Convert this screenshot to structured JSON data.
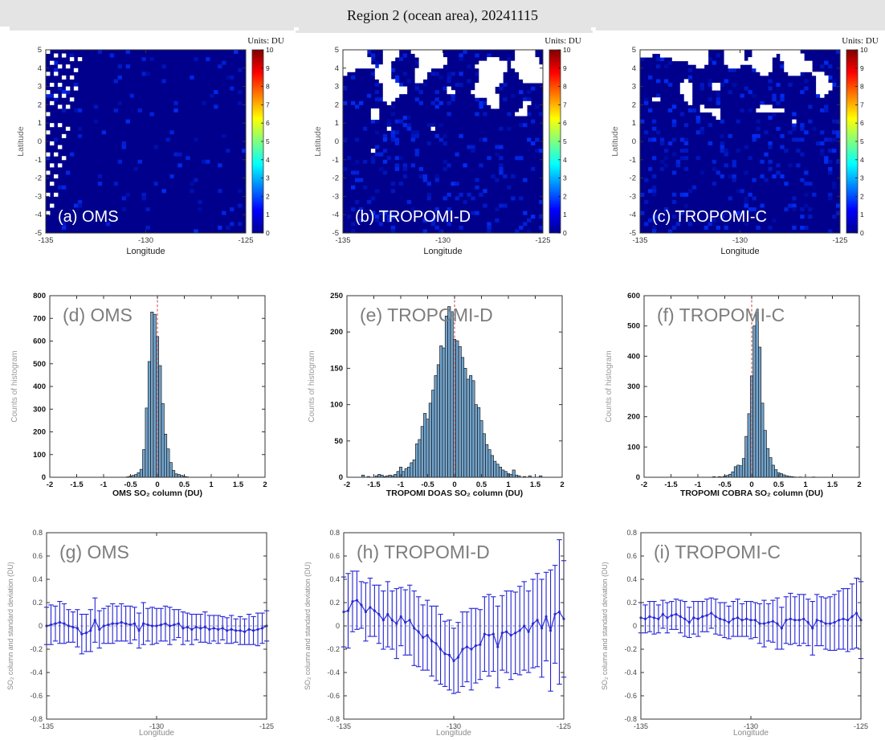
{
  "header": {
    "title": "Region 2 (ocean area), 20241115"
  },
  "style": {
    "header_bg": "#e4e4e4",
    "map_bg": "#00008c",
    "missing_color": "#ffffff",
    "bar_fill": "#73a5ce",
    "bar_edge": "#1a1a1a",
    "refline_color": "#d85050",
    "errorbar_color": "#2424d6",
    "zero_line_color": "#777777",
    "panel_label_row1": "#ffffff",
    "panel_label_gray": "#7d7d7d",
    "axis_color": "#333333",
    "jet_stops": [
      [
        "0%",
        "#7f0000"
      ],
      [
        "12.5%",
        "#ff0000"
      ],
      [
        "37.5%",
        "#ffff00"
      ],
      [
        "50%",
        "#7fff7f"
      ],
      [
        "62.5%",
        "#00ffff"
      ],
      [
        "87.5%",
        "#0000ff"
      ],
      [
        "100%",
        "#00008f"
      ]
    ]
  },
  "chart_data": [
    {
      "panel": "a",
      "type": "heatmap",
      "label": "(a) OMS",
      "xlabel": "Longitude",
      "ylabel": "Latitude",
      "xlim": [
        -135,
        -125
      ],
      "ylim": [
        -5,
        5
      ],
      "xticks": [
        -135,
        -130,
        -125
      ],
      "yticks": [
        5,
        4,
        3,
        2,
        1,
        0,
        -1,
        -2,
        -3,
        -4,
        -5
      ],
      "grid": {
        "cols": 50,
        "rows": 50
      },
      "colorbar": {
        "title": "Units: DU",
        "min": 0,
        "max": 10,
        "ticks": [
          0,
          1,
          2,
          3,
          4,
          5,
          6,
          7,
          8,
          9,
          10
        ]
      },
      "missing_pattern": "diagonal-scatter-left",
      "noise_seed": 5,
      "speckle_density": 0.05,
      "extra_missing": []
    },
    {
      "panel": "b",
      "type": "heatmap",
      "label": "(b) TROPOMI-D",
      "xlabel": "Longitude",
      "ylabel": "Latitude",
      "xlim": [
        -135,
        -125
      ],
      "ylim": [
        -5,
        5
      ],
      "xticks": [
        -135,
        -130,
        -125
      ],
      "yticks": [
        5,
        4,
        3,
        2,
        1,
        0,
        -1,
        -2,
        -3,
        -4,
        -5
      ],
      "grid": {
        "cols": 50,
        "rows": 50
      },
      "colorbar": {
        "title": "Units: DU",
        "min": 0,
        "max": 10,
        "ticks": [
          0,
          1,
          2,
          3,
          4,
          5,
          6,
          7,
          8,
          9,
          10
        ]
      },
      "missing_pattern": "cloud-band-north",
      "noise_seed": 11,
      "speckle_density": 0.12,
      "cloud_rows": 22,
      "cloud_base_threshold": 0.42,
      "cloud_row_slope": 0.02,
      "extra_missing": [
        [
          27,
          7
        ]
      ]
    },
    {
      "panel": "c",
      "type": "heatmap",
      "label": "(c) TROPOMI-C",
      "xlabel": "Longitude",
      "ylabel": "Latitude",
      "xlim": [
        -135,
        -125
      ],
      "ylim": [
        -5,
        5
      ],
      "xticks": [
        -135,
        -130,
        -125
      ],
      "yticks": [
        5,
        4,
        3,
        2,
        1,
        0,
        -1,
        -2,
        -3,
        -4,
        -5
      ],
      "grid": {
        "cols": 50,
        "rows": 50
      },
      "colorbar": {
        "title": "Units: DU",
        "min": 0,
        "max": 10,
        "ticks": [
          0,
          1,
          2,
          3,
          4,
          5,
          6,
          7,
          8,
          9,
          10
        ]
      },
      "missing_pattern": "cloud-band-north",
      "noise_seed": 23,
      "speckle_density": 0.1,
      "cloud_rows": 20,
      "cloud_base_threshold": 0.45,
      "cloud_row_slope": 0.022,
      "extra_missing": []
    },
    {
      "panel": "d",
      "type": "bar",
      "label": "(d) OMS",
      "xlabel": "OMS SO₂ column (DU)",
      "ylabel": "Counts of histogram",
      "xlim": [
        -2,
        2
      ],
      "ylim": [
        0,
        800
      ],
      "xticks": [
        -2,
        -1.5,
        -1,
        -0.5,
        0,
        0.5,
        1,
        1.5,
        2
      ],
      "yticks": [
        0,
        100,
        200,
        300,
        400,
        500,
        600,
        700,
        800
      ],
      "refline_x": 0,
      "bin_start": -0.55,
      "bin_width": 0.05,
      "counts": [
        2,
        5,
        8,
        12,
        20,
        35,
        122,
        305,
        510,
        728,
        718,
        620,
        492,
        325,
        190,
        125,
        65,
        30,
        15,
        12,
        8,
        4,
        2
      ]
    },
    {
      "panel": "e",
      "type": "bar",
      "label": "(e) TROPOMI-D",
      "xlabel": "TROPOMI DOAS SO₂ column (DU)",
      "ylabel": "Counts of histogram",
      "xlim": [
        -2,
        2
      ],
      "ylim": [
        0,
        250
      ],
      "xticks": [
        -2,
        -1.5,
        -1,
        -0.5,
        0,
        0.5,
        1,
        1.5,
        2
      ],
      "yticks": [
        0,
        50,
        100,
        150,
        200,
        250
      ],
      "refline_x": 0,
      "bin_start": -1.7,
      "bin_width": 0.05,
      "counts": [
        3,
        0,
        1,
        0,
        0,
        2,
        4,
        3,
        1,
        2,
        3,
        2,
        4,
        8,
        14,
        8,
        12,
        14,
        20,
        24,
        46,
        52,
        70,
        88,
        80,
        102,
        120,
        140,
        155,
        181,
        178,
        222,
        235,
        228,
        190,
        188,
        180,
        165,
        150,
        135,
        140,
        133,
        100,
        96,
        78,
        60,
        45,
        38,
        30,
        22,
        18,
        14,
        10,
        8,
        5,
        4,
        10,
        3,
        2,
        0,
        1,
        0,
        2,
        0,
        0,
        0,
        2
      ]
    },
    {
      "panel": "f",
      "type": "bar",
      "label": "(f) TROPOMI-C",
      "xlabel": "TROPOMI COBRA SO₂ column (DU)",
      "ylabel": "Counts of histogram",
      "xlim": [
        -2,
        2
      ],
      "ylim": [
        0,
        600
      ],
      "xticks": [
        -2,
        -1.5,
        -1,
        -0.5,
        0,
        0.5,
        1,
        1.5,
        2
      ],
      "yticks": [
        0,
        100,
        200,
        300,
        400,
        500,
        600
      ],
      "refline_x": 0,
      "bin_start": -0.7,
      "bin_width": 0.05,
      "counts": [
        2,
        0,
        2,
        1,
        4,
        6,
        10,
        18,
        35,
        40,
        38,
        62,
        135,
        210,
        335,
        500,
        545,
        430,
        245,
        155,
        95,
        65,
        40,
        25,
        15,
        12,
        8,
        5,
        3,
        2,
        1,
        0,
        1,
        0,
        0,
        0,
        0,
        1
      ]
    },
    {
      "panel": "g",
      "type": "errorbar",
      "label": "(g) OMS",
      "xlabel": "Longitude",
      "ylabel": "SO₂ column and standard deviation (DU)",
      "xlim": [
        -135,
        -125
      ],
      "ylim": [
        -0.8,
        0.8
      ],
      "xticks": [
        -135,
        -130,
        -125
      ],
      "yticks": [
        -0.8,
        -0.6,
        -0.4,
        -0.2,
        0,
        0.2,
        0.4,
        0.6,
        0.8
      ],
      "x_start": -135,
      "x_step": 0.2,
      "y": [
        0.0,
        0.01,
        0.02,
        0.03,
        0.02,
        0.0,
        -0.01,
        -0.02,
        -0.07,
        -0.06,
        -0.04,
        0.05,
        -0.03,
        0.0,
        0.01,
        0.02,
        0.02,
        0.03,
        0.02,
        0.01,
        0.02,
        -0.04,
        0.02,
        0.01,
        0.0,
        0.0,
        0.01,
        0.02,
        0.0,
        0.01,
        0.02,
        -0.02,
        -0.01,
        -0.03,
        -0.01,
        -0.02,
        -0.01,
        -0.03,
        -0.02,
        -0.03,
        -0.02,
        -0.04,
        -0.03,
        -0.04,
        -0.04,
        -0.05,
        -0.03,
        -0.04,
        -0.03,
        -0.02,
        0.0
      ],
      "err": [
        0.16,
        0.17,
        0.15,
        0.18,
        0.17,
        0.14,
        0.13,
        0.16,
        0.17,
        0.16,
        0.18,
        0.19,
        0.16,
        0.15,
        0.16,
        0.17,
        0.15,
        0.16,
        0.15,
        0.16,
        0.14,
        0.15,
        0.18,
        0.14,
        0.16,
        0.15,
        0.14,
        0.15,
        0.16,
        0.13,
        0.12,
        0.14,
        0.12,
        0.13,
        0.11,
        0.12,
        0.13,
        0.12,
        0.11,
        0.12,
        0.1,
        0.11,
        0.12,
        0.1,
        0.12,
        0.11,
        0.13,
        0.12,
        0.14,
        0.13,
        0.13
      ]
    },
    {
      "panel": "h",
      "type": "errorbar",
      "label": "(h) TROPOMI-D",
      "xlabel": "Longitude",
      "ylabel": "SO₂ column and standard deviation (DU)",
      "xlim": [
        -135,
        -125
      ],
      "ylim": [
        -0.8,
        0.8
      ],
      "xticks": [
        -135,
        -130,
        -125
      ],
      "yticks": [
        -0.8,
        -0.6,
        -0.4,
        -0.2,
        0,
        0.2,
        0.4,
        0.6,
        0.8
      ],
      "x_start": -135,
      "x_step": 0.2,
      "y": [
        0.12,
        0.13,
        0.21,
        0.22,
        0.18,
        0.12,
        0.16,
        0.13,
        0.1,
        0.05,
        0.1,
        0.05,
        0.02,
        0.08,
        0.03,
        0.05,
        -0.02,
        -0.05,
        -0.1,
        -0.08,
        -0.13,
        -0.15,
        -0.2,
        -0.24,
        -0.25,
        -0.3,
        -0.27,
        -0.2,
        -0.18,
        -0.2,
        -0.17,
        -0.16,
        -0.07,
        -0.08,
        -0.07,
        -0.18,
        -0.06,
        -0.05,
        -0.08,
        -0.06,
        -0.04,
        0.0,
        -0.05,
        0.02,
        0.05,
        -0.02,
        0.08,
        -0.04,
        0.1,
        0.12,
        0.06
      ],
      "err": [
        0.3,
        0.32,
        0.26,
        0.25,
        0.2,
        0.25,
        0.25,
        0.22,
        0.25,
        0.25,
        0.28,
        0.25,
        0.3,
        0.25,
        0.28,
        0.3,
        0.32,
        0.3,
        0.28,
        0.3,
        0.3,
        0.32,
        0.3,
        0.28,
        0.3,
        0.28,
        0.3,
        0.32,
        0.3,
        0.35,
        0.32,
        0.3,
        0.32,
        0.35,
        0.32,
        0.35,
        0.32,
        0.35,
        0.38,
        0.35,
        0.38,
        0.38,
        0.35,
        0.38,
        0.4,
        0.42,
        0.38,
        0.52,
        0.42,
        0.62,
        0.5
      ]
    },
    {
      "panel": "i",
      "type": "errorbar",
      "label": "(i) TROPOMI-C",
      "xlabel": "Longitude",
      "ylabel": "SO₂ column and standard deviation (DU)",
      "xlim": [
        -135,
        -125
      ],
      "ylim": [
        -0.8,
        0.8
      ],
      "xticks": [
        -135,
        -130,
        -125
      ],
      "yticks": [
        -0.8,
        -0.6,
        -0.4,
        -0.2,
        0,
        0.2,
        0.4,
        0.6,
        0.8
      ],
      "x_start": -135,
      "x_step": 0.2,
      "y": [
        0.07,
        0.06,
        0.08,
        0.07,
        0.06,
        0.1,
        0.07,
        0.09,
        0.1,
        0.08,
        0.06,
        0.03,
        0.07,
        0.06,
        0.08,
        0.09,
        0.11,
        0.08,
        0.06,
        0.05,
        0.03,
        0.06,
        0.07,
        0.05,
        0.06,
        0.05,
        0.05,
        0.02,
        0.02,
        0.03,
        0.04,
        0.02,
        -0.02,
        0.05,
        0.06,
        0.05,
        0.05,
        0.06,
        0.03,
        -0.02,
        0.05,
        0.04,
        0.02,
        0.02,
        0.03,
        0.05,
        0.06,
        0.05,
        0.08,
        0.11,
        0.05
      ],
      "err": [
        0.13,
        0.12,
        0.13,
        0.14,
        0.12,
        0.12,
        0.13,
        0.12,
        0.13,
        0.14,
        0.15,
        0.13,
        0.14,
        0.15,
        0.13,
        0.14,
        0.13,
        0.15,
        0.14,
        0.15,
        0.14,
        0.15,
        0.16,
        0.14,
        0.15,
        0.16,
        0.15,
        0.17,
        0.2,
        0.16,
        0.18,
        0.22,
        0.18,
        0.2,
        0.22,
        0.2,
        0.22,
        0.21,
        0.2,
        0.23,
        0.22,
        0.21,
        0.22,
        0.23,
        0.24,
        0.25,
        0.26,
        0.27,
        0.28,
        0.3,
        0.33
      ]
    }
  ]
}
